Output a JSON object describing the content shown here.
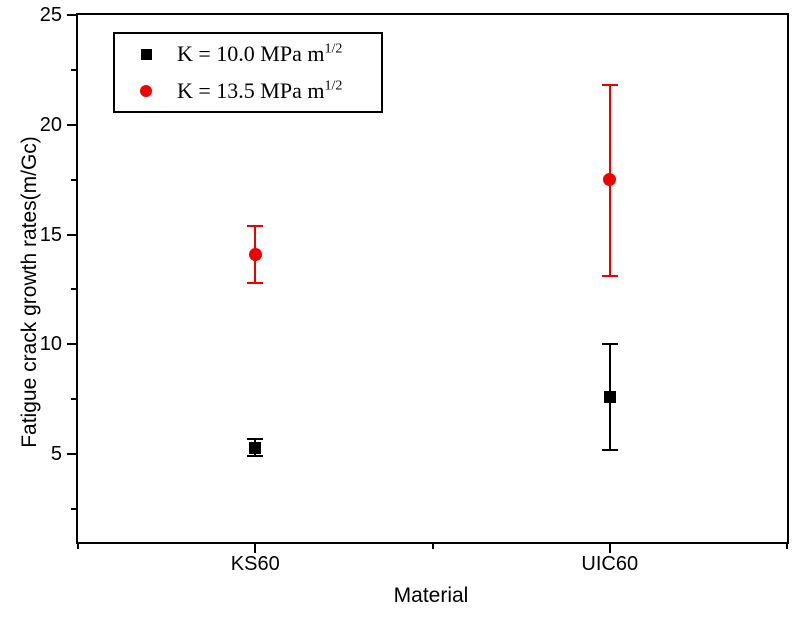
{
  "chart_data": {
    "type": "scatter",
    "title": "",
    "xlabel": "Material",
    "ylabel": "Fatigue crack growth rates(m/Gc)",
    "categories": [
      "KS60",
      "UIC60"
    ],
    "xlim": [
      0.5,
      2.5
    ],
    "ylim": [
      1,
      25
    ],
    "grid": false,
    "legend_position": "top-left",
    "axis_color": "#000000",
    "background_color": "#ffffff",
    "x_ticks": {
      "major": [
        {
          "v": 1,
          "label": "KS60"
        },
        {
          "v": 2,
          "label": "UIC60"
        }
      ],
      "minor": [
        0.5,
        1.5,
        2.5
      ]
    },
    "y_ticks": {
      "major": [
        {
          "v": 5,
          "label": "5"
        },
        {
          "v": 10,
          "label": "10"
        },
        {
          "v": 15,
          "label": "15"
        },
        {
          "v": 20,
          "label": "20"
        },
        {
          "v": 25,
          "label": "25"
        }
      ],
      "minor": [
        2.5,
        7.5,
        12.5,
        17.5,
        22.5
      ]
    },
    "series": [
      {
        "name": "K = 10.0 MPa m^1/2",
        "label_base": "K = 10.0 MPa m",
        "label_sup": "1/2",
        "marker": "square",
        "color": "#000000",
        "points": [
          {
            "x": 1,
            "category": "KS60",
            "y": 5.3,
            "y_low": 4.9,
            "y_high": 5.7
          },
          {
            "x": 2,
            "category": "UIC60",
            "y": 7.6,
            "y_low": 5.2,
            "y_high": 10.0
          }
        ]
      },
      {
        "name": "K = 13.5 MPa m^1/2",
        "label_base": "K = 13.5 MPa m",
        "label_sup": "1/2",
        "marker": "circle",
        "color": "#ee0000",
        "points": [
          {
            "x": 1,
            "category": "KS60",
            "y": 14.1,
            "y_low": 12.8,
            "y_high": 15.4
          },
          {
            "x": 2,
            "category": "UIC60",
            "y": 17.5,
            "y_low": 13.1,
            "y_high": 21.8
          }
        ]
      }
    ]
  }
}
